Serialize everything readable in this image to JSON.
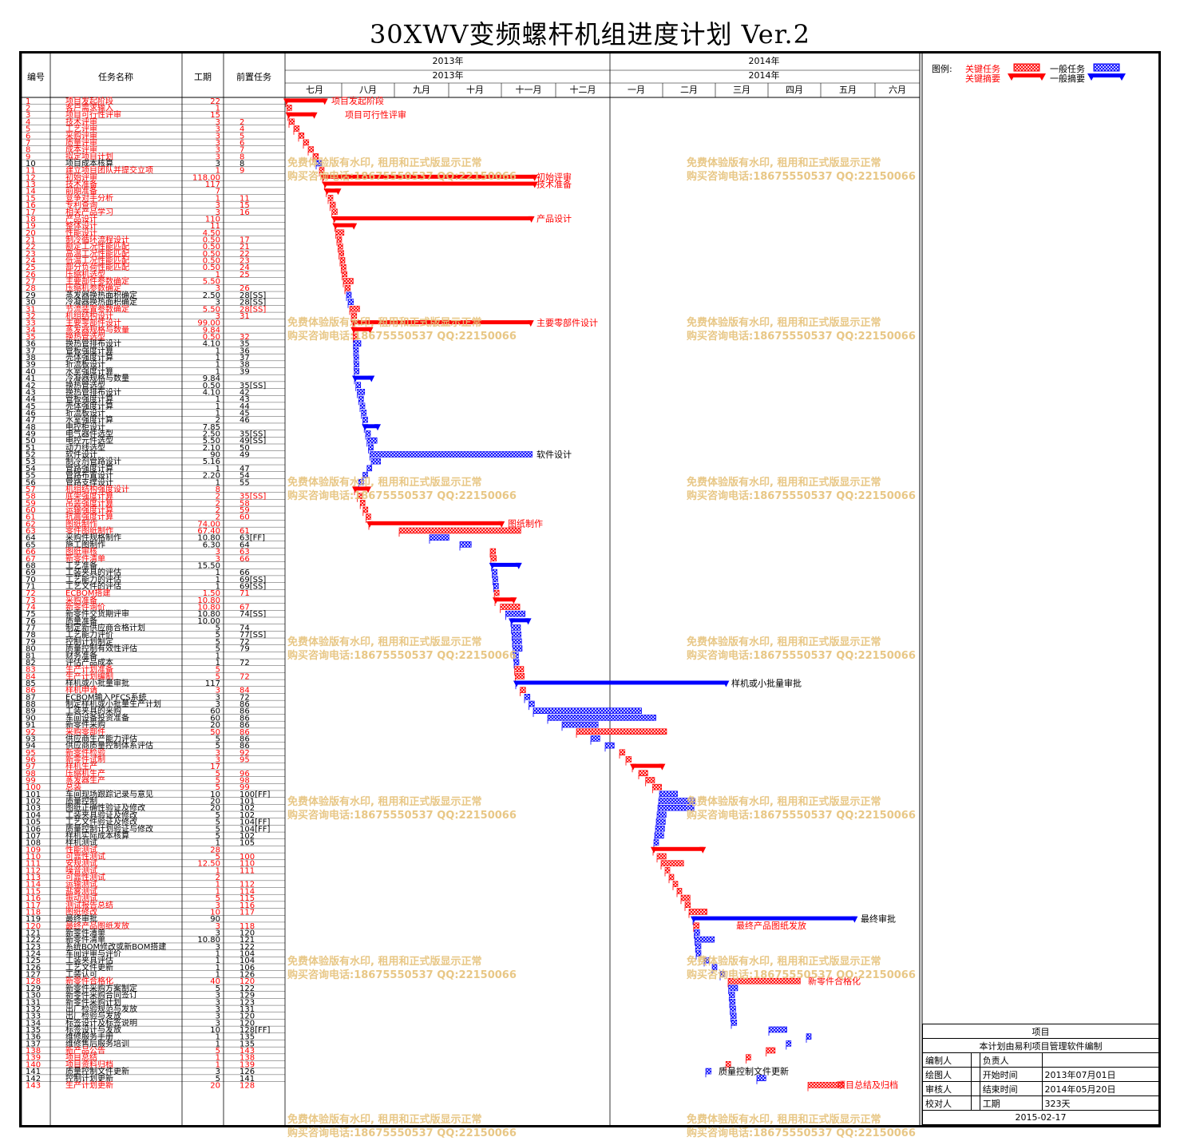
{
  "title": "30XWV变频螺杆机组进度计划 Ver.2",
  "columns": {
    "id": "编号",
    "name": "任务名称",
    "duration": "工期",
    "predecessor": "前置任务"
  },
  "timeline": {
    "years": [
      {
        "label": "2013年",
        "sub": "2013年"
      },
      {
        "label": "2014年",
        "sub": "2014年"
      }
    ],
    "months": [
      "七月",
      "八月",
      "九月",
      "十月",
      "十一月",
      "十二月",
      "一月",
      "二月",
      "三月",
      "四月",
      "五月",
      "六月"
    ]
  },
  "legend": {
    "label": "图例:",
    "key_task": "关键任务",
    "key_summary": "关键摘要",
    "normal_task": "一般任务",
    "normal_summary": "一般摘要"
  },
  "colors": {
    "critical": "#ff0000",
    "normal": "#0000ff",
    "watermark": "#e6c27a",
    "grid": "#000000"
  },
  "watermark": {
    "line1": "免费体验版有水印, 租用和正式版显示正常",
    "line2": "购买咨询电话:18675550537 QQ:22150066"
  },
  "bar_labels": [
    {
      "text": "项目发起阶段",
      "critical": true
    },
    {
      "text": "项目可行性评审",
      "critical": true
    },
    {
      "text": "初始评审",
      "critical": true
    },
    {
      "text": "技术准备",
      "critical": true
    },
    {
      "text": "产品设计",
      "critical": true
    },
    {
      "text": "主要零部件设计",
      "critical": true
    },
    {
      "text": "软件设计",
      "critical": false
    },
    {
      "text": "图纸制作",
      "critical": true
    },
    {
      "text": "样机或小批量审批",
      "critical": false
    },
    {
      "text": "最终审批",
      "critical": false
    },
    {
      "text": "最终产品图纸发放",
      "critical": true
    },
    {
      "text": "新零件合格化",
      "critical": true
    },
    {
      "text": "质量控制文件更新",
      "critical": false
    },
    {
      "text": "项目总结及归档",
      "critical": true
    }
  ],
  "tasks": [
    {
      "id": "1",
      "name": "项目发起阶段",
      "dur": "22",
      "pred": "",
      "c": 1
    },
    {
      "id": "2",
      "name": "客户需求输入",
      "dur": "1",
      "pred": "",
      "c": 1
    },
    {
      "id": "3",
      "name": "项目可行性评审",
      "dur": "15",
      "pred": "",
      "c": 1
    },
    {
      "id": "4",
      "name": "技术评审",
      "dur": "3",
      "pred": "2",
      "c": 1
    },
    {
      "id": "5",
      "name": "工艺评审",
      "dur": "3",
      "pred": "4",
      "c": 1
    },
    {
      "id": "6",
      "name": "采购评审",
      "dur": "3",
      "pred": "5",
      "c": 1
    },
    {
      "id": "7",
      "name": "质量评审",
      "dur": "3",
      "pred": "6",
      "c": 1
    },
    {
      "id": "8",
      "name": "成本评审",
      "dur": "3",
      "pred": "7",
      "c": 1
    },
    {
      "id": "9",
      "name": "拟定项目计划",
      "dur": "3",
      "pred": "8",
      "c": 1
    },
    {
      "id": "10",
      "name": "项目成本核算",
      "dur": "3",
      "pred": "8",
      "c": 0
    },
    {
      "id": "11",
      "name": "建立项目团队并提交立项",
      "dur": "1",
      "pred": "9",
      "c": 1
    },
    {
      "id": "12",
      "name": "初始评审",
      "dur": "118.00",
      "pred": "",
      "c": 1
    },
    {
      "id": "13",
      "name": "技术准备",
      "dur": "117",
      "pred": "",
      "c": 1
    },
    {
      "id": "14",
      "name": "前期准备",
      "dur": "7",
      "pred": "",
      "c": 1
    },
    {
      "id": "15",
      "name": "竞争对手分析",
      "dur": "1",
      "pred": "11",
      "c": 1
    },
    {
      "id": "16",
      "name": "专利查询",
      "dur": "3",
      "pred": "15",
      "c": 1
    },
    {
      "id": "17",
      "name": "相关产品学习",
      "dur": "3",
      "pred": "16",
      "c": 1
    },
    {
      "id": "18",
      "name": "产品设计",
      "dur": "110",
      "pred": "",
      "c": 1
    },
    {
      "id": "19",
      "name": "整体设计",
      "dur": "11",
      "pred": "",
      "c": 1
    },
    {
      "id": "20",
      "name": "性能设计",
      "dur": "4.50",
      "pred": "",
      "c": 1
    },
    {
      "id": "21",
      "name": "制冷循环流程设计",
      "dur": "0.50",
      "pred": "17",
      "c": 1
    },
    {
      "id": "22",
      "name": "额定工况性能匹配",
      "dur": "0.50",
      "pred": "21",
      "c": 1
    },
    {
      "id": "23",
      "name": "高温工况性能匹配",
      "dur": "0.50",
      "pred": "22",
      "c": 1
    },
    {
      "id": "24",
      "name": "低温工况性能匹配",
      "dur": "0.50",
      "pred": "23",
      "c": 1
    },
    {
      "id": "25",
      "name": "部分负荷性能匹配",
      "dur": "0.50",
      "pred": "24",
      "c": 1
    },
    {
      "id": "26",
      "name": "压缩机选型",
      "dur": "1",
      "pred": "25",
      "c": 1
    },
    {
      "id": "27",
      "name": "主要部件参数确定",
      "dur": "5.50",
      "pred": "",
      "c": 1
    },
    {
      "id": "28",
      "name": "压缩机参数确定",
      "dur": "3",
      "pred": "26",
      "c": 1
    },
    {
      "id": "29",
      "name": "蒸发器换热面积确定",
      "dur": "2.50",
      "pred": "28[SS]",
      "c": 0
    },
    {
      "id": "30",
      "name": "冷凝器换热面积确定",
      "dur": "3",
      "pred": "28[SS]",
      "c": 0
    },
    {
      "id": "31",
      "name": "节流装置参数确定",
      "dur": "5.50",
      "pred": "28[SS]",
      "c": 1
    },
    {
      "id": "32",
      "name": "机组结构设计",
      "dur": "3",
      "pred": "31",
      "c": 1
    },
    {
      "id": "33",
      "name": "主要零部件设计",
      "dur": "99.00",
      "pred": "",
      "c": 1
    },
    {
      "id": "34",
      "name": "蒸发器规格与数量",
      "dur": "9.84",
      "pred": "",
      "c": 1
    },
    {
      "id": "35",
      "name": "换热管选型",
      "dur": "0.50",
      "pred": "32",
      "c": 1
    },
    {
      "id": "36",
      "name": "换热管排布设计",
      "dur": "4.10",
      "pred": "35",
      "c": 0
    },
    {
      "id": "37",
      "name": "管板强度计算",
      "dur": "1",
      "pred": "36",
      "c": 0
    },
    {
      "id": "38",
      "name": "壳体强度计算",
      "dur": "1",
      "pred": "37",
      "c": 0
    },
    {
      "id": "39",
      "name": "折流板设计",
      "dur": "1",
      "pred": "38",
      "c": 0
    },
    {
      "id": "40",
      "name": "水室强度计算",
      "dur": "1",
      "pred": "39",
      "c": 0
    },
    {
      "id": "41",
      "name": "冷凝器规格与数量",
      "dur": "9.84",
      "pred": "",
      "c": 0
    },
    {
      "id": "42",
      "name": "换热管选型",
      "dur": "0.50",
      "pred": "35[SS]",
      "c": 0
    },
    {
      "id": "43",
      "name": "换热管排布设计",
      "dur": "4.10",
      "pred": "42",
      "c": 0
    },
    {
      "id": "44",
      "name": "管板强度计算",
      "dur": "1",
      "pred": "43",
      "c": 0
    },
    {
      "id": "45",
      "name": "壳体强度计算",
      "dur": "1",
      "pred": "44",
      "c": 0
    },
    {
      "id": "46",
      "name": "折流板设计",
      "dur": "1",
      "pred": "45",
      "c": 0
    },
    {
      "id": "47",
      "name": "水室强度计算",
      "dur": "2",
      "pred": "46",
      "c": 0
    },
    {
      "id": "48",
      "name": "电控柜设计",
      "dur": "7.85",
      "pred": "",
      "c": 0
    },
    {
      "id": "49",
      "name": "电气器件选型",
      "dur": "2.50",
      "pred": "35[SS]",
      "c": 0
    },
    {
      "id": "50",
      "name": "电控元件选型",
      "dur": "5.50",
      "pred": "49[SS]",
      "c": 0
    },
    {
      "id": "51",
      "name": "动力线选型",
      "dur": "2.10",
      "pred": "50",
      "c": 0
    },
    {
      "id": "52",
      "name": "软件设计",
      "dur": "90",
      "pred": "49",
      "c": 0
    },
    {
      "id": "53",
      "name": "制冷剂管路设计",
      "dur": "5.16",
      "pred": "",
      "c": 0
    },
    {
      "id": "54",
      "name": "管路强度计算",
      "dur": "1",
      "pred": "47",
      "c": 0
    },
    {
      "id": "55",
      "name": "管路布置设计",
      "dur": "2.20",
      "pred": "54",
      "c": 0
    },
    {
      "id": "56",
      "name": "管路支撑设计",
      "dur": "1",
      "pred": "55",
      "c": 0
    },
    {
      "id": "57",
      "name": "机组结构强度设计",
      "dur": "8",
      "pred": "",
      "c": 1
    },
    {
      "id": "58",
      "name": "底架强度计算",
      "dur": "2",
      "pred": "35[SS]",
      "c": 1
    },
    {
      "id": "59",
      "name": "吊装强度计算",
      "dur": "2",
      "pred": "58",
      "c": 1
    },
    {
      "id": "60",
      "name": "运输强度计算",
      "dur": "2",
      "pred": "59",
      "c": 1
    },
    {
      "id": "61",
      "name": "抗震强度计算",
      "dur": "2",
      "pred": "60",
      "c": 1
    },
    {
      "id": "62",
      "name": "图纸制作",
      "dur": "74.00",
      "pred": "",
      "c": 1
    },
    {
      "id": "63",
      "name": "零件图纸制作",
      "dur": "67.40",
      "pred": "61",
      "c": 1
    },
    {
      "id": "64",
      "name": "采购件规格制作",
      "dur": "10.80",
      "pred": "63[FF]",
      "c": 0
    },
    {
      "id": "65",
      "name": "施工图制作",
      "dur": "6.30",
      "pred": "64",
      "c": 0
    },
    {
      "id": "66",
      "name": "图纸审核",
      "dur": "3",
      "pred": "63",
      "c": 1
    },
    {
      "id": "67",
      "name": "新零件清单",
      "dur": "3",
      "pred": "66",
      "c": 1
    },
    {
      "id": "68",
      "name": "工艺准备",
      "dur": "15.50",
      "pred": "",
      "c": 0
    },
    {
      "id": "69",
      "name": "工装夹具的评估",
      "dur": "1",
      "pred": "66",
      "c": 0
    },
    {
      "id": "70",
      "name": "工艺能力的评估",
      "dur": "1",
      "pred": "69[SS]",
      "c": 0
    },
    {
      "id": "71",
      "name": "工艺文件的评估",
      "dur": "1",
      "pred": "69[SS]",
      "c": 0
    },
    {
      "id": "72",
      "name": "ECBOM搭建",
      "dur": "1.50",
      "pred": "71",
      "c": 1
    },
    {
      "id": "73",
      "name": "采购准备",
      "dur": "10.80",
      "pred": "",
      "c": 1
    },
    {
      "id": "74",
      "name": "新零件询价",
      "dur": "10.80",
      "pred": "67",
      "c": 1
    },
    {
      "id": "75",
      "name": "新零件交货期评审",
      "dur": "10.80",
      "pred": "74[SS]",
      "c": 0
    },
    {
      "id": "76",
      "name": "质量准备",
      "dur": "10.00",
      "pred": "",
      "c": 0
    },
    {
      "id": "77",
      "name": "制定新供应商合格计划",
      "dur": "5",
      "pred": "74",
      "c": 0
    },
    {
      "id": "78",
      "name": "工艺能力评价",
      "dur": "5",
      "pred": "77[SS]",
      "c": 0
    },
    {
      "id": "79",
      "name": "控制计划制定",
      "dur": "5",
      "pred": "72",
      "c": 0
    },
    {
      "id": "80",
      "name": "质量控制有效性评估",
      "dur": "5",
      "pred": "79",
      "c": 0
    },
    {
      "id": "81",
      "name": "财务准备",
      "dur": "1",
      "pred": "",
      "c": 0
    },
    {
      "id": "82",
      "name": "评估产品成本",
      "dur": "1",
      "pred": "72",
      "c": 0
    },
    {
      "id": "83",
      "name": "生产计划准备",
      "dur": "5",
      "pred": "",
      "c": 1
    },
    {
      "id": "84",
      "name": "生产计划编制",
      "dur": "5",
      "pred": "72",
      "c": 1
    },
    {
      "id": "85",
      "name": "样机或小批量审批",
      "dur": "117",
      "pred": "",
      "c": 0
    },
    {
      "id": "86",
      "name": "样机申请",
      "dur": "3",
      "pred": "84",
      "c": 1
    },
    {
      "id": "87",
      "name": "ECBOM输入PFCS系统",
      "dur": "3",
      "pred": "72",
      "c": 0
    },
    {
      "id": "88",
      "name": "制定样机或小批量生产计划",
      "dur": "3",
      "pred": "86",
      "c": 0
    },
    {
      "id": "89",
      "name": "工装夹具的采购",
      "dur": "60",
      "pred": "86",
      "c": 0
    },
    {
      "id": "90",
      "name": "车间设备投资准备",
      "dur": "60",
      "pred": "86",
      "c": 0
    },
    {
      "id": "91",
      "name": "新零件采购",
      "dur": "20",
      "pred": "86",
      "c": 0
    },
    {
      "id": "92",
      "name": "采购零部件",
      "dur": "50",
      "pred": "86",
      "c": 1
    },
    {
      "id": "93",
      "name": "供应商生产能力评估",
      "dur": "5",
      "pred": "86",
      "c": 0
    },
    {
      "id": "94",
      "name": "供应商质量控制体系评估",
      "dur": "5",
      "pred": "86",
      "c": 0
    },
    {
      "id": "95",
      "name": "新零件检验",
      "dur": "3",
      "pred": "92",
      "c": 1
    },
    {
      "id": "96",
      "name": "新零件试制",
      "dur": "3",
      "pred": "95",
      "c": 1
    },
    {
      "id": "97",
      "name": "样机生产",
      "dur": "17",
      "pred": "",
      "c": 1
    },
    {
      "id": "98",
      "name": "压缩机生产",
      "dur": "5",
      "pred": "96",
      "c": 1
    },
    {
      "id": "99",
      "name": "蒸发器生产",
      "dur": "5",
      "pred": "98",
      "c": 1
    },
    {
      "id": "100",
      "name": "总装",
      "dur": "5",
      "pred": "99",
      "c": 1
    },
    {
      "id": "101",
      "name": "车间现场跟踪记录与意见",
      "dur": "10",
      "pred": "100[FF]",
      "c": 0
    },
    {
      "id": "102",
      "name": "质量控制",
      "dur": "20",
      "pred": "101",
      "c": 0
    },
    {
      "id": "103",
      "name": "图纸正确性验证及修改",
      "dur": "20",
      "pred": "102",
      "c": 0
    },
    {
      "id": "104",
      "name": "工装夹具验证及修改",
      "dur": "5",
      "pred": "102",
      "c": 0
    },
    {
      "id": "105",
      "name": "工艺文件验证及修改",
      "dur": "5",
      "pred": "104[FF]",
      "c": 0
    },
    {
      "id": "106",
      "name": "质量控制计划验证与修改",
      "dur": "5",
      "pred": "104[FF]",
      "c": 0
    },
    {
      "id": "107",
      "name": "样机实际成本核算",
      "dur": "5",
      "pred": "102",
      "c": 0
    },
    {
      "id": "108",
      "name": "样机测试",
      "dur": "1",
      "pred": "105",
      "c": 0
    },
    {
      "id": "109",
      "name": "性能测试",
      "dur": "28",
      "pred": "",
      "c": 1
    },
    {
      "id": "110",
      "name": "可靠性测试",
      "dur": "5",
      "pred": "100",
      "c": 1
    },
    {
      "id": "111",
      "name": "安规测试",
      "dur": "12.50",
      "pred": "110",
      "c": 1
    },
    {
      "id": "112",
      "name": "噪音测试",
      "dur": "1",
      "pred": "111",
      "c": 1
    },
    {
      "id": "113",
      "name": "可靠性测试",
      "dur": "2",
      "pred": "",
      "c": 1
    },
    {
      "id": "114",
      "name": "运输测试",
      "dur": "1",
      "pred": "112",
      "c": 1
    },
    {
      "id": "115",
      "name": "盐雾测试",
      "dur": "1",
      "pred": "114",
      "c": 1
    },
    {
      "id": "116",
      "name": "振动测试",
      "dur": "5",
      "pred": "115",
      "c": 1
    },
    {
      "id": "117",
      "name": "测试报告总结",
      "dur": "3",
      "pred": "116",
      "c": 1
    },
    {
      "id": "118",
      "name": "图纸修改",
      "dur": "10",
      "pred": "117",
      "c": 1
    },
    {
      "id": "119",
      "name": "最终审批",
      "dur": "90",
      "pred": "",
      "c": 0
    },
    {
      "id": "120",
      "name": "最终产品图纸发放",
      "dur": "3",
      "pred": "118",
      "c": 1
    },
    {
      "id": "121",
      "name": "新零件清单",
      "dur": "3",
      "pred": "120",
      "c": 0
    },
    {
      "id": "122",
      "name": "新零件清单",
      "dur": "10.80",
      "pred": "121",
      "c": 0
    },
    {
      "id": "123",
      "name": "系统BOM修改或新BOM搭建",
      "dur": "3",
      "pred": "122",
      "c": 0
    },
    {
      "id": "124",
      "name": "车间评审与评价",
      "dur": "1",
      "pred": "104",
      "c": 0
    },
    {
      "id": "125",
      "name": "工装夹具评估",
      "dur": "1",
      "pred": "104",
      "c": 0
    },
    {
      "id": "126",
      "name": "工艺文件更新",
      "dur": "1",
      "pred": "106",
      "c": 0
    },
    {
      "id": "127",
      "name": "工装认可",
      "dur": "1",
      "pred": "126",
      "c": 0
    },
    {
      "id": "128",
      "name": "新零件合格化",
      "dur": "40",
      "pred": "120",
      "c": 1
    },
    {
      "id": "129",
      "name": "新零件采购方案制定",
      "dur": "5",
      "pred": "122",
      "c": 0
    },
    {
      "id": "130",
      "name": "新零件采购合同签订",
      "dur": "3",
      "pred": "129",
      "c": 0
    },
    {
      "id": "131",
      "name": "新零件采购计划",
      "dur": "3",
      "pred": "123",
      "c": 0
    },
    {
      "id": "132",
      "name": "出厂检验规范与发放",
      "dur": "3",
      "pred": "131",
      "c": 0
    },
    {
      "id": "133",
      "name": "出厂检验与发放",
      "dur": "3",
      "pred": "120",
      "c": 0
    },
    {
      "id": "134",
      "name": "标签设计及标签说明",
      "dur": "3",
      "pred": "120",
      "c": 0
    },
    {
      "id": "135",
      "name": "标签设计与发放",
      "dur": "10",
      "pred": "128[FF]",
      "c": 0
    },
    {
      "id": "136",
      "name": "维修服务手册",
      "dur": "1",
      "pred": "135",
      "c": 0
    },
    {
      "id": "137",
      "name": "维修售后服务培训",
      "dur": "1",
      "pred": "135",
      "c": 0
    },
    {
      "id": "138",
      "name": "新产品公告",
      "dur": "5",
      "pred": "143",
      "c": 1
    },
    {
      "id": "139",
      "name": "项目总结",
      "dur": "1",
      "pred": "138",
      "c": 1
    },
    {
      "id": "140",
      "name": "项目资料归档",
      "dur": "1",
      "pred": "139",
      "c": 1
    },
    {
      "id": "141",
      "name": "质量控制文件更新",
      "dur": "3",
      "pred": "126",
      "c": 0
    },
    {
      "id": "142",
      "name": "控制计划更新",
      "dur": "5",
      "pred": "141",
      "c": 0
    },
    {
      "id": "143",
      "name": "生产计划更新",
      "dur": "20",
      "pred": "128",
      "c": 1
    }
  ],
  "project_info": {
    "header": "项目",
    "note": "本计划由易利项目管理软件编制",
    "rows": [
      [
        "编制人",
        "",
        "负责人",
        ""
      ],
      [
        "绘图人",
        "",
        "开始时间",
        "2013年07月01日"
      ],
      [
        "审核人",
        "",
        "结束时间",
        "2014年05月20日"
      ],
      [
        "校对人",
        "",
        "工期",
        "323天"
      ]
    ],
    "date": "2015-02-17"
  }
}
